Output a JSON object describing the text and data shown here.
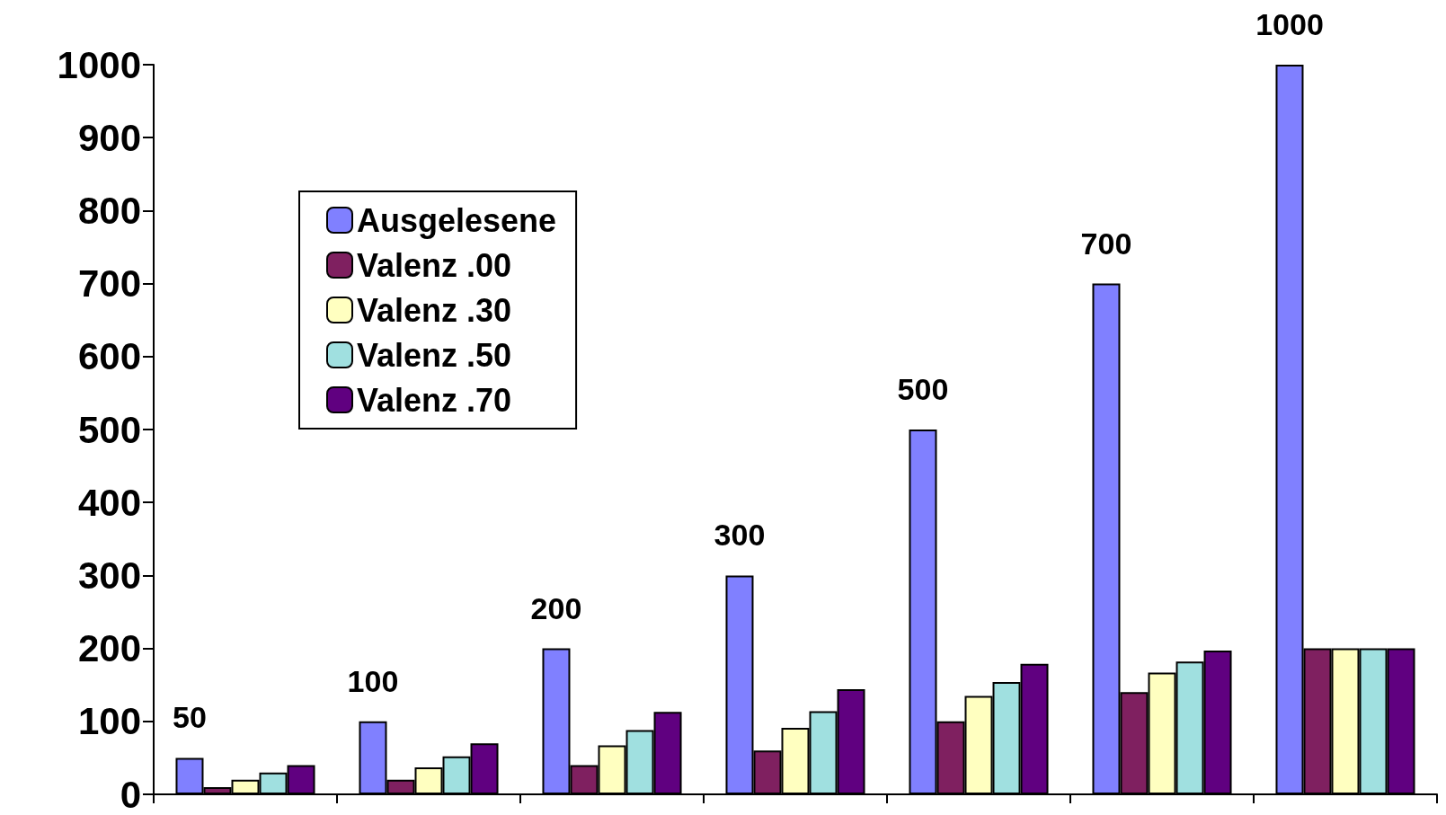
{
  "chart_data": {
    "type": "bar",
    "categories": [
      null,
      null,
      null,
      null,
      null,
      null,
      null
    ],
    "series": [
      {
        "name": "Ausgelesene",
        "color": "#8080ff",
        "values": [
          50,
          100,
          200,
          300,
          500,
          700,
          1000
        ],
        "value_labels": [
          "50",
          "100",
          "200",
          "300",
          "500",
          "700",
          "1000"
        ]
      },
      {
        "name": "Valenz .00",
        "color": "#7f2060",
        "values": [
          10,
          20,
          40,
          60,
          100,
          140,
          200
        ]
      },
      {
        "name": "Valenz .30",
        "color": "#ffffc0",
        "values": [
          20,
          37,
          67,
          91,
          135,
          167,
          200
        ]
      },
      {
        "name": "Valenz .50",
        "color": "#a0e0e0",
        "values": [
          30,
          52,
          88,
          114,
          154,
          182,
          200
        ]
      },
      {
        "name": "Valenz .70",
        "color": "#600080",
        "values": [
          40,
          70,
          113,
          144,
          179,
          197,
          200
        ]
      }
    ],
    "ylim": [
      0,
      1000
    ],
    "yticks": [
      0,
      100,
      200,
      300,
      400,
      500,
      600,
      700,
      800,
      900,
      1000
    ],
    "grid": false,
    "legend": "top left"
  }
}
